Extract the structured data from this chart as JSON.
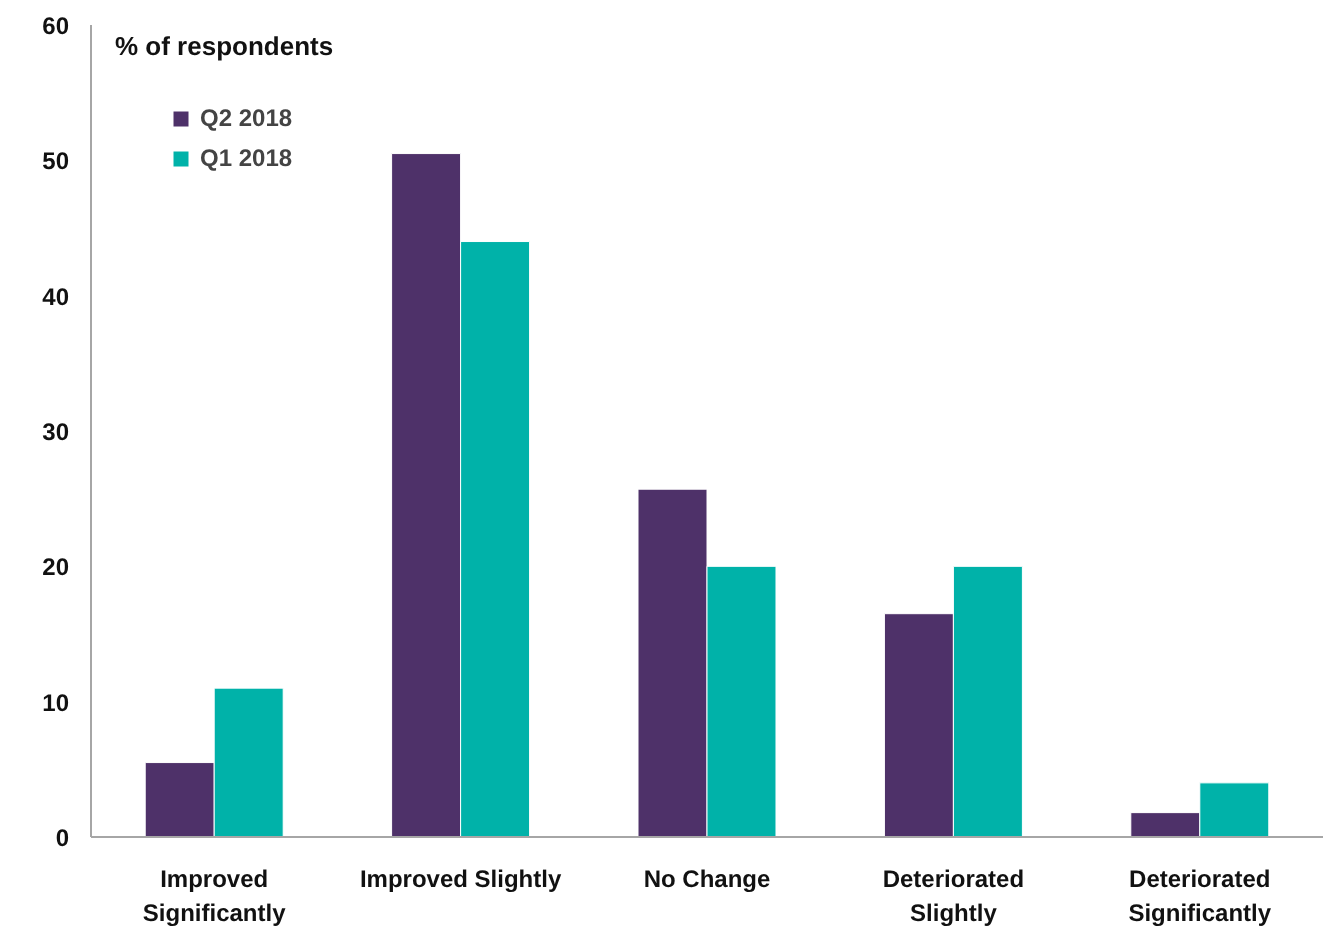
{
  "chart_data": {
    "type": "bar",
    "ylabel": "% of respondents",
    "categories": [
      "Improved Significantly",
      "Improved Slightly",
      "No Change",
      "Deteriorated Slightly",
      "Deteriorated Significantly"
    ],
    "series": [
      {
        "name": "Q2 2018",
        "color": "#4e3169",
        "values": [
          5.5,
          50.5,
          25.7,
          16.5,
          1.8
        ]
      },
      {
        "name": "Q1 2018",
        "color": "#00b2a9",
        "values": [
          11,
          44,
          20,
          20,
          4
        ]
      }
    ],
    "ylim": [
      0,
      60
    ],
    "yticks": [
      0,
      10,
      20,
      30,
      40,
      50,
      60
    ],
    "grid": false,
    "legend": "top left"
  }
}
